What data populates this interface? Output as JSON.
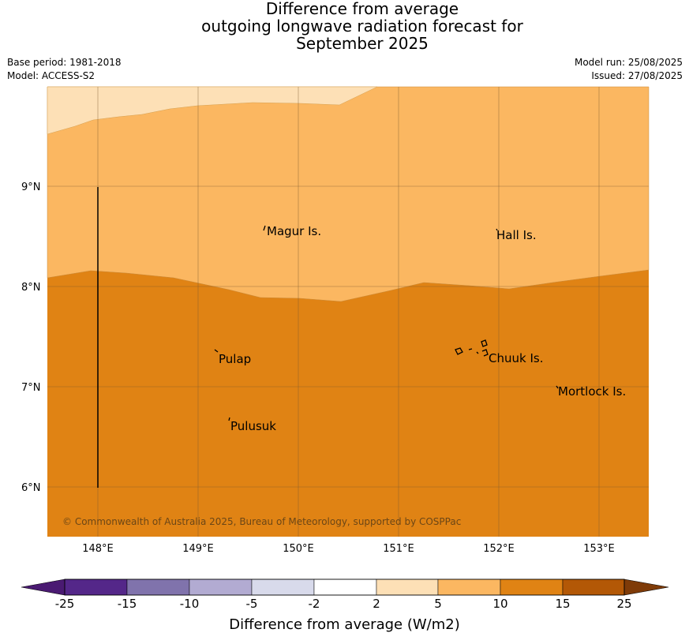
{
  "title": {
    "line1": "Difference from average",
    "line2": "outgoing longwave radiation forecast for",
    "line3": "September 2025"
  },
  "meta": {
    "base_period": "Base period: 1981-2018",
    "model": "Model: ACCESS-S2",
    "model_run": "Model run: 25/08/2025",
    "issued": "Issued: 27/08/2025"
  },
  "map": {
    "lon_ticks": [
      "148°E",
      "149°E",
      "150°E",
      "151°E",
      "152°E",
      "153°E"
    ],
    "lat_ticks": [
      "9°N",
      "8°N",
      "7°N",
      "6°N"
    ],
    "places": [
      {
        "name": "Magur Is."
      },
      {
        "name": "Hall Is."
      },
      {
        "name": "Pulap"
      },
      {
        "name": "Chuuk Is."
      },
      {
        "name": "Mortlock Is."
      },
      {
        "name": "Pulusuk"
      }
    ],
    "copyright": "© Commonwealth of Australia 2025, Bureau of Meteorology, supported by COSPPac",
    "colors": {
      "band_2_5": "#fde0b6",
      "band_5_10": "#fbb761",
      "band_10_15": "#e08314",
      "grid": "#7a5a30",
      "coast": "#000000"
    }
  },
  "colorbar": {
    "title": "Difference from average (W/m2)",
    "labels": [
      "-25",
      "-15",
      "-10",
      "-5",
      "-2",
      "2",
      "5",
      "10",
      "15",
      "25"
    ],
    "colors": [
      "#4a1a72",
      "#542789",
      "#8073ac",
      "#b2abd2",
      "#d8daeb",
      "#ffffff",
      "#fde0b6",
      "#fbb761",
      "#e08314",
      "#b35806",
      "#7f3b08"
    ]
  }
}
